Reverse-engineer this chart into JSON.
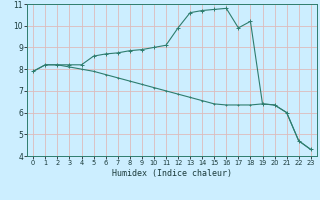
{
  "xlabel": "Humidex (Indice chaleur)",
  "background_color": "#cceeff",
  "grid_color": "#aaddcc",
  "line_color": "#2e7d6e",
  "xlim": [
    -0.5,
    23.5
  ],
  "ylim": [
    4,
    11
  ],
  "xticks": [
    0,
    1,
    2,
    3,
    4,
    5,
    6,
    7,
    8,
    9,
    10,
    11,
    12,
    13,
    14,
    15,
    16,
    17,
    18,
    19,
    20,
    21,
    22,
    23
  ],
  "yticks": [
    4,
    5,
    6,
    7,
    8,
    9,
    10,
    11
  ],
  "series1_x": [
    0,
    1,
    2,
    3,
    4,
    5,
    6,
    7,
    8,
    9,
    10,
    11,
    12,
    13,
    14,
    15,
    16,
    17,
    18,
    19,
    20,
    21,
    22,
    23
  ],
  "series1_y": [
    7.9,
    8.2,
    8.2,
    8.2,
    8.2,
    8.6,
    8.7,
    8.75,
    8.85,
    8.9,
    9.0,
    9.1,
    9.9,
    10.6,
    10.7,
    10.75,
    10.8,
    9.9,
    10.2,
    6.4,
    6.35,
    6.0,
    4.7,
    4.3
  ],
  "series2_x": [
    0,
    1,
    2,
    3,
    4,
    5,
    6,
    7,
    8,
    9,
    10,
    11,
    12,
    13,
    14,
    15,
    16,
    17,
    18,
    19,
    20,
    21,
    22,
    23
  ],
  "series2_y": [
    7.9,
    8.2,
    8.2,
    8.1,
    8.0,
    7.9,
    7.75,
    7.6,
    7.45,
    7.3,
    7.15,
    7.0,
    6.85,
    6.7,
    6.55,
    6.4,
    6.35,
    6.35,
    6.35,
    6.4,
    6.35,
    6.0,
    4.7,
    4.3
  ]
}
